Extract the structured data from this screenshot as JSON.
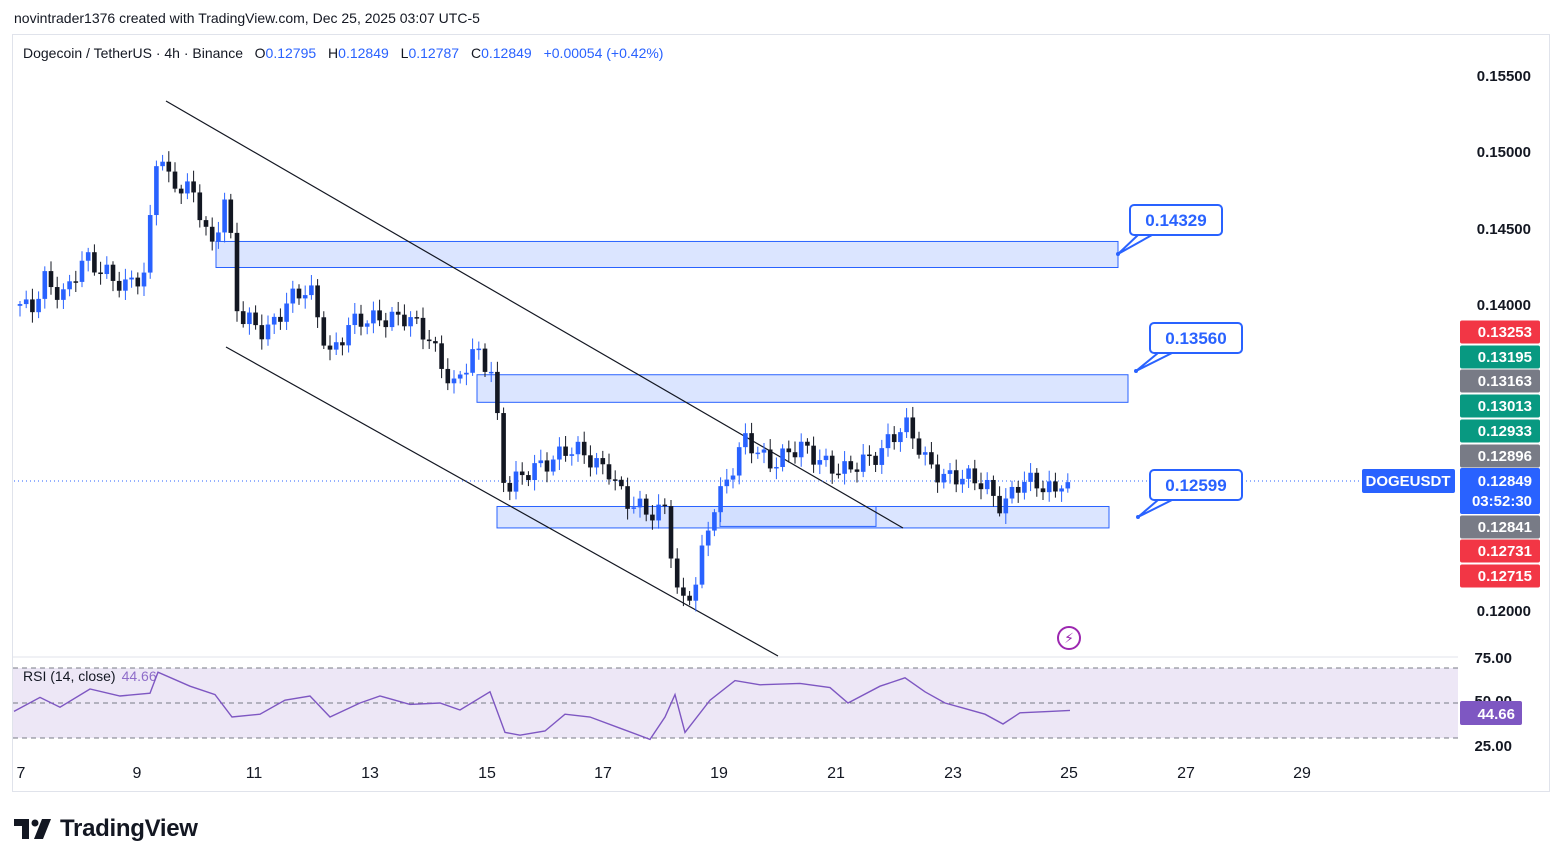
{
  "header": {
    "caption": "novintrader1376 created with TradingView.com, Dec 25, 2025 03:07 UTC-5"
  },
  "legend": {
    "symbol_line": "Dogecoin / TetherUS · 4h · Binance",
    "open_label": "O",
    "open": "0.12795",
    "high_label": "H",
    "high": "0.12849",
    "low_label": "L",
    "low": "0.12787",
    "close_label": "C",
    "close": "0.12849",
    "change": "+0.00054 (+0.42%)"
  },
  "rsi_legend": {
    "label": "RSI (14, close)",
    "value": "44.66"
  },
  "price_axis": {
    "ticks": [
      "0.15500",
      "0.15000",
      "0.14500",
      "0.14000",
      "0.12000"
    ],
    "tags": [
      {
        "text": "0.13253",
        "color": "#f23645"
      },
      {
        "text": "0.13195",
        "color": "#089981"
      },
      {
        "text": "0.13163",
        "color": "#787b86"
      },
      {
        "text": "0.13013",
        "color": "#089981"
      },
      {
        "text": "0.12933",
        "color": "#089981"
      },
      {
        "text": "0.12896",
        "color": "#787b86"
      },
      {
        "text": "0.12841",
        "color": "#787b86"
      },
      {
        "text": "0.12731",
        "color": "#f23645"
      },
      {
        "text": "0.12715",
        "color": "#f23645"
      }
    ],
    "symbol_tag": "DOGEUSDT",
    "last_price": "0.12849",
    "countdown": "03:52:30"
  },
  "rsi_axis": {
    "ticks": [
      "75.00",
      "50.00",
      "25.00"
    ],
    "current": "44.66"
  },
  "time_axis": {
    "labels": [
      "7",
      "9",
      "11",
      "13",
      "15",
      "17",
      "19",
      "21",
      "23",
      "25",
      "27",
      "29"
    ]
  },
  "callouts": [
    "0.14329",
    "0.13560",
    "0.12599"
  ],
  "colors": {
    "up": "#2962ff",
    "down": "#131722",
    "zone_fill": "#cfdcff",
    "zone_stroke": "#2962ff",
    "rsi": "#7e57c2",
    "rsi_band": "#ede7f6"
  },
  "footer": {
    "brand": "TradingView"
  },
  "chart_data": {
    "type": "candlestick",
    "title": "Dogecoin / TetherUS · 4h · Binance",
    "x": [
      "Dec 7",
      "Dec 9",
      "Dec 11",
      "Dec 13",
      "Dec 15",
      "Dec 17",
      "Dec 19",
      "Dec 21",
      "Dec 23",
      "Dec 25"
    ],
    "approx_close": [
      0.14,
      0.147,
      0.139,
      0.1355,
      0.1275,
      0.129,
      0.129,
      0.1305,
      0.129,
      0.12849
    ],
    "ylim": [
      0.118,
      0.1565
    ],
    "zones": [
      {
        "label": "0.14329",
        "from": 0.1425,
        "to": 0.1442
      },
      {
        "label": "0.13560",
        "from": 0.1337,
        "to": 0.1355
      },
      {
        "label": "0.12599",
        "from": 0.1255,
        "to": 0.1269
      }
    ],
    "rsi": {
      "period": 14,
      "last": 44.66,
      "levels": [
        75,
        50,
        25
      ]
    }
  }
}
